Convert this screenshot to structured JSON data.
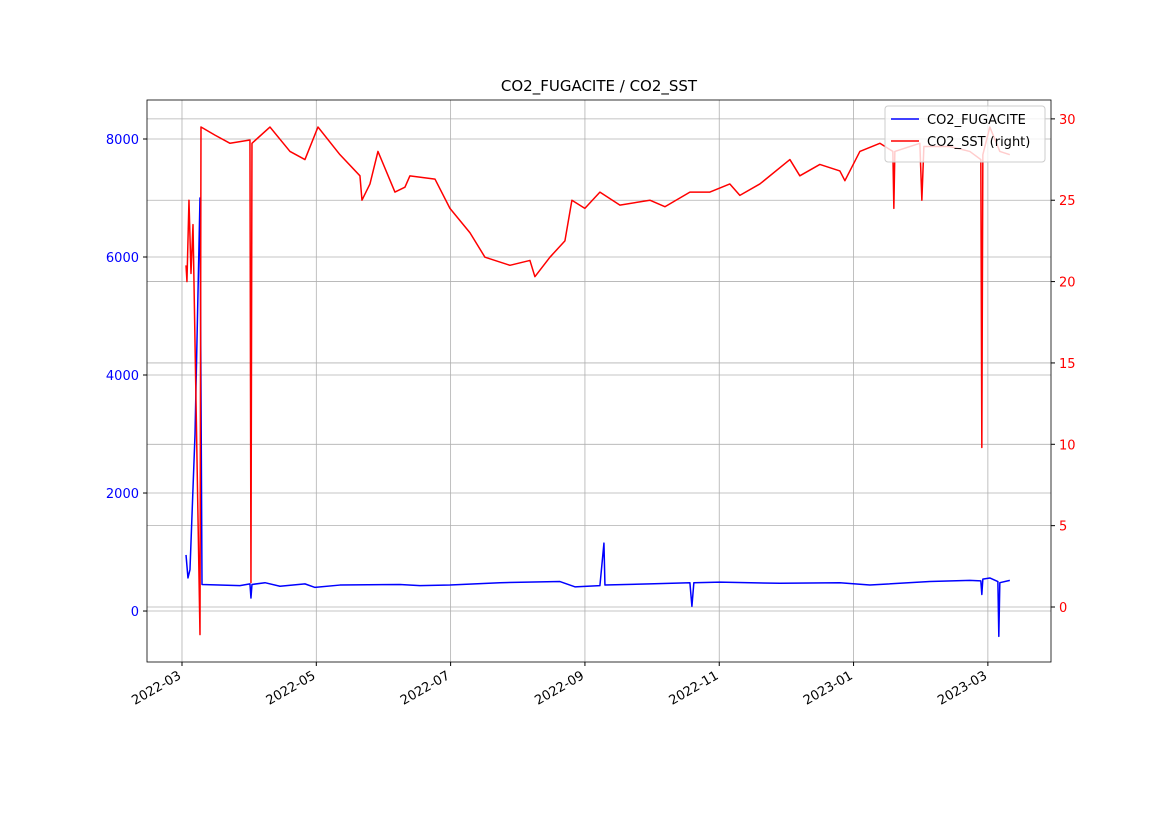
{
  "chart_data": {
    "type": "line",
    "title": "CO2_FUGACITE / CO2_SST",
    "xlim": [
      1.479,
      14.94
    ],
    "xticks": [
      {
        "value": 2,
        "label": "2022-03"
      },
      {
        "value": 4,
        "label": "2022-05"
      },
      {
        "value": 6,
        "label": "2022-07"
      },
      {
        "value": 8,
        "label": "2022-09"
      },
      {
        "value": 10,
        "label": "2022-11"
      },
      {
        "value": 12,
        "label": "2023-01"
      },
      {
        "value": 14,
        "label": "2023-03"
      }
    ],
    "ylim": [
      -864,
      8661
    ],
    "yticks": [
      0,
      2000,
      4000,
      6000,
      8000
    ],
    "y2lim": [
      -3.38,
      31.16
    ],
    "y2ticks": [
      0,
      5,
      10,
      15,
      20,
      25,
      30
    ],
    "grid": true,
    "legend": "upper right",
    "series": [
      {
        "name": "CO2_FUGACITE",
        "color": "#0000ff",
        "x": [
          2.06,
          2.089,
          2.119,
          2.194,
          2.268,
          2.298,
          2.863,
          3.012,
          3.027,
          3.042,
          3.236,
          3.459,
          3.831,
          3.98,
          4.352,
          5.245,
          5.543,
          5.99,
          6.734,
          7.628,
          7.851,
          8.223,
          8.283,
          8.298,
          8.967,
          9.563,
          9.593,
          9.622,
          10.01,
          10.903,
          11.796,
          12.243,
          13.136,
          13.731,
          13.895,
          13.91,
          13.925,
          14.029,
          14.149,
          14.163,
          14.178,
          14.327
        ],
        "values": [
          950,
          560,
          700,
          3000,
          7000,
          450,
          430,
          460,
          220,
          450,
          480,
          420,
          460,
          400,
          440,
          450,
          430,
          440,
          480,
          500,
          410,
          430,
          1150,
          440,
          460,
          480,
          80,
          480,
          490,
          470,
          480,
          440,
          500,
          520,
          510,
          280,
          540,
          560,
          500,
          -430,
          480,
          520
        ]
      },
      {
        "name": "CO2_SST (right)",
        "color": "#ff0000",
        "axis": "y2",
        "x": [
          2.06,
          2.074,
          2.104,
          2.134,
          2.164,
          2.268,
          2.283,
          2.491,
          2.715,
          3.012,
          3.027,
          3.042,
          3.31,
          3.608,
          3.831,
          4.025,
          4.352,
          4.65,
          4.68,
          4.799,
          4.918,
          5.171,
          5.32,
          5.394,
          5.767,
          5.99,
          6.288,
          6.511,
          6.883,
          7.181,
          7.255,
          7.479,
          7.702,
          7.806,
          7.999,
          8.223,
          8.521,
          8.967,
          9.191,
          9.563,
          9.861,
          10.158,
          10.307,
          10.605,
          11.052,
          11.2,
          11.498,
          11.796,
          11.871,
          12.094,
          12.392,
          12.585,
          12.6,
          12.615,
          12.987,
          13.017,
          13.047,
          13.434,
          13.731,
          13.895,
          13.91,
          13.925,
          14.029,
          14.178,
          14.327
        ],
        "values": [
          21,
          20,
          25,
          20.5,
          23.5,
          -1.7,
          29.5,
          29,
          28.5,
          28.7,
          1.5,
          28.5,
          29.5,
          28,
          27.5,
          29.5,
          27.8,
          26.5,
          25,
          26,
          28,
          25.5,
          25.8,
          26.5,
          26.3,
          24.5,
          23,
          21.5,
          21,
          21.3,
          20.3,
          21.5,
          22.5,
          25,
          24.5,
          25.5,
          24.7,
          25,
          24.6,
          25.5,
          25.5,
          26,
          25.3,
          26,
          27.5,
          26.5,
          27.2,
          26.8,
          26.2,
          28,
          28.5,
          28,
          24.5,
          28,
          28.5,
          25,
          28.3,
          28.3,
          28,
          27.5,
          9.8,
          27.8,
          29.5,
          28,
          27.8
        ]
      }
    ]
  }
}
